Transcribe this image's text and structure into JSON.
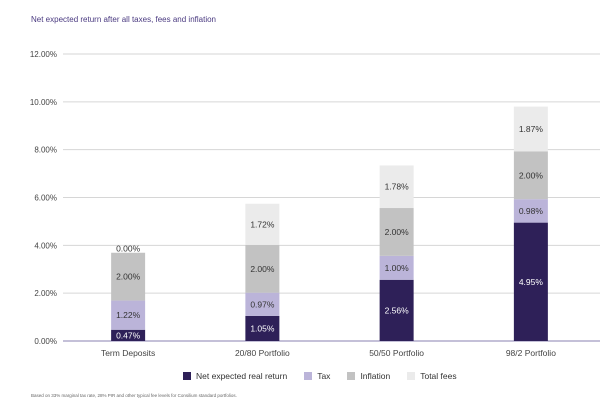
{
  "chart_data": {
    "type": "bar",
    "stacked": true,
    "title": "Net expected return after all taxes, fees and inflation",
    "xlabel": "",
    "ylabel": "",
    "ylim": [
      0,
      12
    ],
    "yticks": [
      "0.00%",
      "2.00%",
      "4.00%",
      "6.00%",
      "8.00%",
      "10.00%",
      "12.00%"
    ],
    "ytick_values": [
      0,
      2,
      4,
      6,
      8,
      10,
      12
    ],
    "grid": true,
    "legend_position": "bottom",
    "categories": [
      "Term Deposits",
      "20/80 Portfolio",
      "50/50 Portfolio",
      "98/2 Portfolio"
    ],
    "series": [
      {
        "name": "Net expected real return",
        "color": "#2e2058",
        "label_color": "#ffffff",
        "values": [
          0.47,
          1.05,
          2.56,
          4.95
        ],
        "labels": [
          "0.47%",
          "1.05%",
          "2.56%",
          "4.95%"
        ]
      },
      {
        "name": "Tax",
        "color": "#bbb4d9",
        "label_color": "#333333",
        "values": [
          1.22,
          0.97,
          1.0,
          0.98
        ],
        "labels": [
          "1.22%",
          "0.97%",
          "1.00%",
          "0.98%"
        ]
      },
      {
        "name": "Inflation",
        "color": "#c2c2c2",
        "label_color": "#333333",
        "values": [
          2.0,
          2.0,
          2.0,
          2.0
        ],
        "labels": [
          "2.00%",
          "2.00%",
          "2.00%",
          "2.00%"
        ]
      },
      {
        "name": "Total fees",
        "color": "#ebebeb",
        "label_color": "#333333",
        "values": [
          0.0,
          1.72,
          1.78,
          1.87
        ],
        "labels": [
          "0.00%",
          "1.72%",
          "1.78%",
          "1.87%"
        ]
      }
    ],
    "footnote": "Based on 33% marginal tax rate, 28% PIR and other typical fee levels for Consilium standard portfolios."
  }
}
